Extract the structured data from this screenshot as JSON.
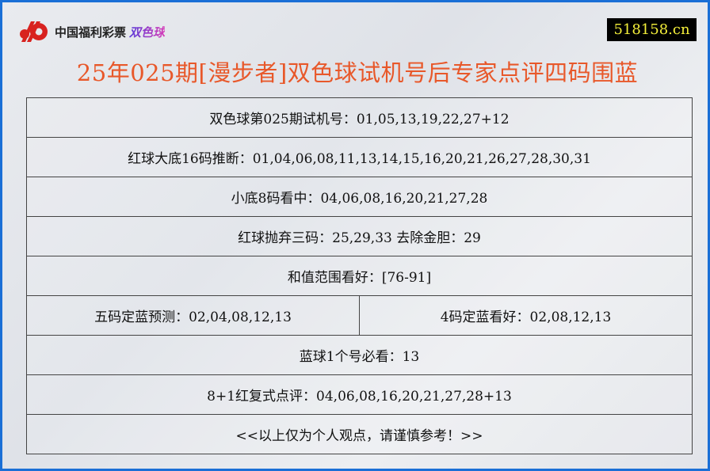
{
  "header": {
    "logo_text": "中国福利彩票",
    "logo_game": "双色球",
    "site": "518158.cn",
    "title": "25年025期[漫步者]双色球试机号后专家点评四码围蓝"
  },
  "rows": [
    "双色球第025期试机号：01,05,13,19,22,27+12",
    "红球大底16码推断：01,04,06,08,11,13,14,15,16,20,21,26,27,28,30,31",
    "小底8码看中：04,06,08,16,20,21,27,28",
    "红球抛弃三码：25,29,33 去除金胆：29",
    "和值范围看好：[76-91]"
  ],
  "split_row": [
    "五码定蓝预测：02,04,08,12,13",
    "4码定蓝看好：02,08,12,13"
  ],
  "rows2": [
    "蓝球1个号必看：13",
    "8+1红复式点评：04,06,08,16,20,21,27,28+13",
    "<<以上仅为个人观点，请谨慎参考！>>"
  ],
  "colors": {
    "border": "#1a6fd6",
    "title": "#e8582a",
    "site_bg": "#000000",
    "site_fg": "#f4ef3a"
  }
}
